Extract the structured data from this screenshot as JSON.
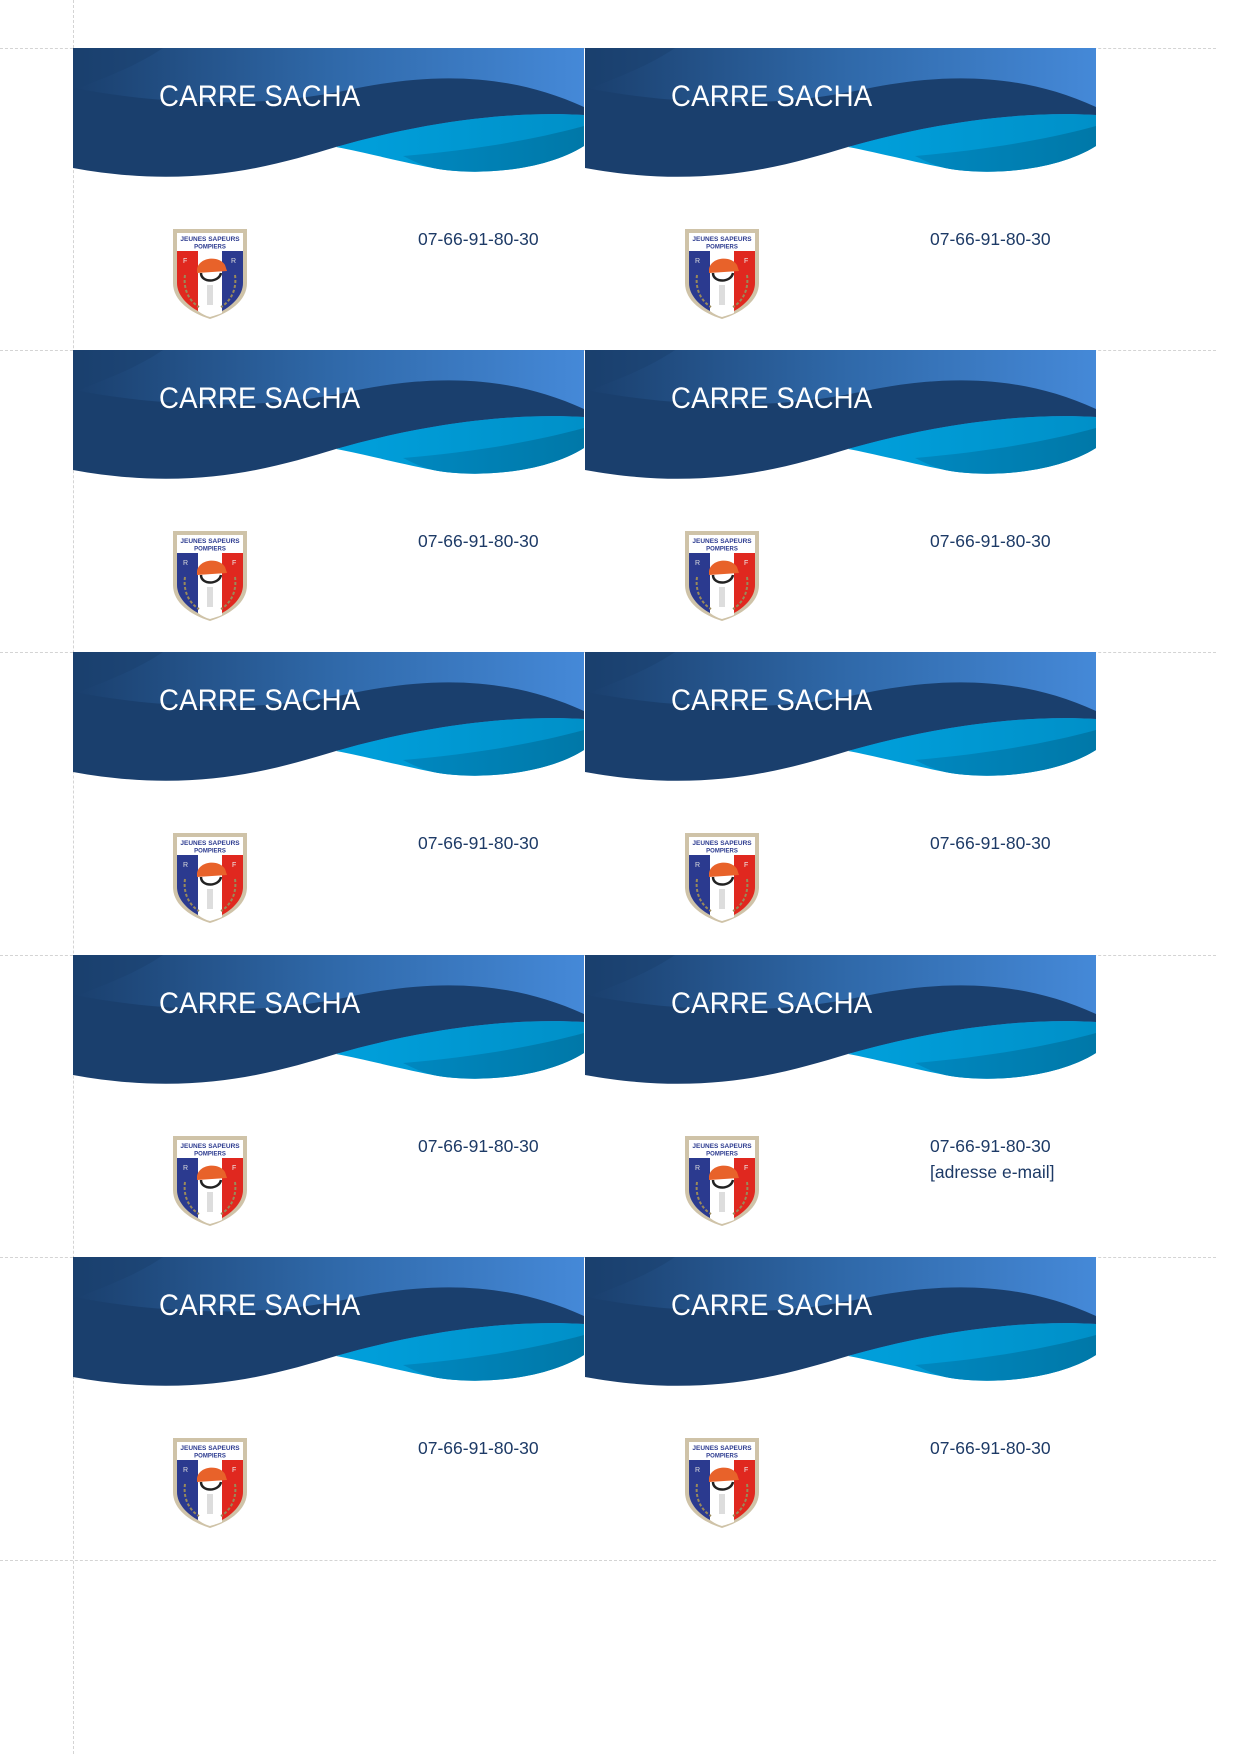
{
  "colors": {
    "banner_dark": "#1a3f6d",
    "banner_light": "#4589d8",
    "wave_cyan": "#00a0dc",
    "wave_teal": "#0078a8",
    "text_blue": "#1d3a66",
    "flag_blue": "#2b3a8f",
    "flag_red": "#e0281f",
    "helmet_orange": "#e8622a"
  },
  "logo": {
    "line1": "JEUNES SAPEURS",
    "line2": "POMPIERS",
    "left_letter": "R",
    "right_letter": "F"
  },
  "cards": [
    {
      "name": "CARRE SACHA",
      "phone": "07-66-91-80-30",
      "logo_mirrored": true
    },
    {
      "name": "CARRE SACHA",
      "phone": "07-66-91-80-30"
    },
    {
      "name": "CARRE SACHA",
      "phone": "07-66-91-80-30"
    },
    {
      "name": "CARRE SACHA",
      "phone": "07-66-91-80-30"
    },
    {
      "name": "CARRE SACHA",
      "phone": "07-66-91-80-30"
    },
    {
      "name": "CARRE SACHA",
      "phone": "07-66-91-80-30"
    },
    {
      "name": "CARRE SACHA",
      "phone": "07-66-91-80-30"
    },
    {
      "name": "CARRE SACHA",
      "phone": "07-66-91-80-30",
      "email": "[adresse e-mail]"
    },
    {
      "name": "CARRE SACHA",
      "phone": "07-66-91-80-30"
    },
    {
      "name": "CARRE SACHA",
      "phone": "07-66-91-80-30"
    }
  ]
}
